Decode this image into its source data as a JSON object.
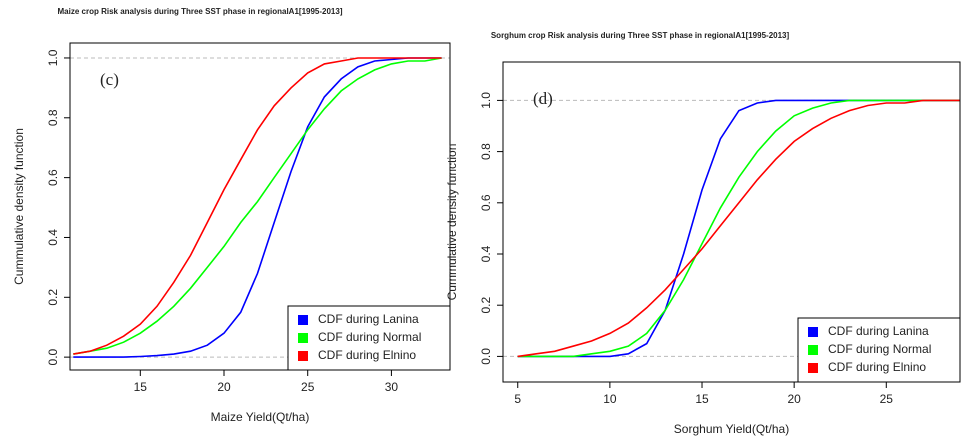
{
  "chart_data": [
    {
      "type": "line",
      "title": "Maize crop Risk analysis during Three SST phase in regionalA1[1995-2013]",
      "x_label": "Maize Yield(Qt/ha)",
      "y_label": "Cummulative density function",
      "annotation": "(c)",
      "x": [
        11,
        12,
        13,
        14,
        15,
        16,
        17,
        18,
        19,
        20,
        21,
        22,
        23,
        24,
        25,
        26,
        27,
        28,
        29,
        30,
        31,
        32,
        33
      ],
      "series": [
        {
          "name": "CDF during Lanina",
          "color": "#0000ff",
          "values": [
            0,
            0,
            0,
            0,
            0.002,
            0.005,
            0.01,
            0.02,
            0.04,
            0.08,
            0.15,
            0.28,
            0.45,
            0.62,
            0.77,
            0.87,
            0.93,
            0.97,
            0.99,
            0.995,
            1,
            1,
            1
          ]
        },
        {
          "name": "CDF during Normal",
          "color": "#00ff00",
          "values": [
            0.01,
            0.02,
            0.03,
            0.05,
            0.08,
            0.12,
            0.17,
            0.23,
            0.3,
            0.37,
            0.45,
            0.52,
            0.6,
            0.68,
            0.76,
            0.83,
            0.89,
            0.93,
            0.96,
            0.98,
            0.99,
            0.99,
            1
          ]
        },
        {
          "name": "CDF during Elnino",
          "color": "#ff0000",
          "values": [
            0.01,
            0.02,
            0.04,
            0.07,
            0.11,
            0.17,
            0.25,
            0.34,
            0.45,
            0.56,
            0.66,
            0.76,
            0.84,
            0.9,
            0.95,
            0.98,
            0.99,
            1,
            1,
            1,
            1,
            1,
            1
          ]
        }
      ],
      "xlim": [
        10.8,
        33.5
      ],
      "ylim": [
        -0.043,
        1.05
      ],
      "xticks": [
        15,
        20,
        25,
        30
      ],
      "yticks": [
        {
          "value": 0,
          "label": "0.0"
        },
        {
          "value": 0.2,
          "label": "0.2"
        },
        {
          "value": 0.4,
          "label": "0.4"
        },
        {
          "value": 0.6,
          "label": "0.6"
        },
        {
          "value": 0.8,
          "label": "0.8"
        },
        {
          "value": 1,
          "label": "1.0"
        }
      ],
      "hlines": [
        0,
        1
      ],
      "legend": "bottom-right"
    },
    {
      "type": "line",
      "title": "Sorghum crop Risk analysis during Three SST phase in regionalA1[1995-2013]",
      "x_label": "Sorghum Yield(Qt/ha)",
      "y_label": "Cummulative density function",
      "annotation": "(d)",
      "x": [
        5,
        6,
        7,
        8,
        9,
        10,
        11,
        12,
        13,
        14,
        15,
        16,
        17,
        18,
        19,
        20,
        21,
        22,
        23,
        24,
        25,
        26,
        27,
        28,
        29
      ],
      "series": [
        {
          "name": "CDF during Lanina",
          "color": "#0000ff",
          "values": [
            0,
            0,
            0,
            0,
            0,
            0,
            0.01,
            0.05,
            0.18,
            0.4,
            0.65,
            0.85,
            0.96,
            0.99,
            1,
            1,
            1,
            1,
            1,
            1,
            1,
            1,
            1,
            1,
            1
          ]
        },
        {
          "name": "CDF during Normal",
          "color": "#00ff00",
          "values": [
            0,
            0,
            0,
            0,
            0.01,
            0.02,
            0.04,
            0.09,
            0.18,
            0.3,
            0.44,
            0.58,
            0.7,
            0.8,
            0.88,
            0.94,
            0.97,
            0.99,
            1,
            1,
            1,
            1,
            1,
            1,
            1
          ]
        },
        {
          "name": "CDF during Elnino",
          "color": "#ff0000",
          "values": [
            0,
            0.01,
            0.02,
            0.04,
            0.06,
            0.09,
            0.13,
            0.19,
            0.26,
            0.34,
            0.42,
            0.51,
            0.6,
            0.69,
            0.77,
            0.84,
            0.89,
            0.93,
            0.96,
            0.98,
            0.99,
            0.99,
            1,
            1,
            1
          ]
        }
      ],
      "xlim": [
        4.2,
        29
      ],
      "ylim": [
        -0.1,
        1.15
      ],
      "xticks": [
        5,
        10,
        15,
        20,
        25
      ],
      "yticks": [
        {
          "value": 0,
          "label": "0.0"
        },
        {
          "value": 0.2,
          "label": "0.2"
        },
        {
          "value": 0.4,
          "label": "0.4"
        },
        {
          "value": 0.6,
          "label": "0.6"
        },
        {
          "value": 0.8,
          "label": "0.8"
        },
        {
          "value": 1,
          "label": "1.0"
        }
      ],
      "hlines": [
        0,
        1
      ],
      "legend": "bottom-right"
    }
  ]
}
